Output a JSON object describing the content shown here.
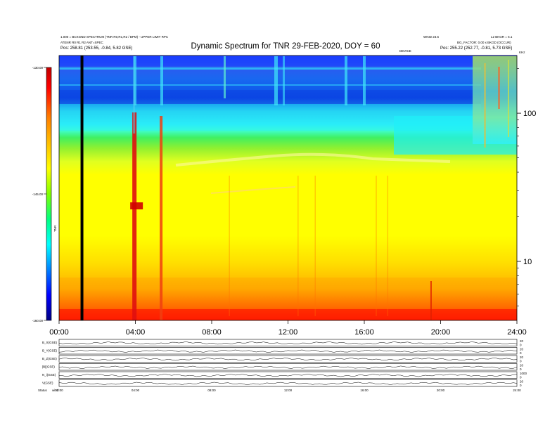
{
  "header": {
    "title": "Dynamic Spectrum for TNR 29-FEB-2020, DOY = 60",
    "left_line1": "1.000 = BCKGND SPECTRUM (TNR R0,R1,R2 / BPM) - UPPER LIMIT RPC",
    "left_line2": "ATENR R0 R1 R2 ANT=SPEC",
    "left_line3": "Pos:  258.81 (253.55, -0.84, 5.82 GSE)",
    "right_line1a": "WIND 23.6",
    "right_line1b": "L2 BKGR = 6.1",
    "right_line2": "BG_FACTOR: 0.00 x BKGD (OCCUR)",
    "right_line3": "Pos:  255.22 (252.77, -0.81, 5.73 GSE)",
    "mid_label": "DEVICE",
    "top_right_corner": "KHz"
  },
  "chart_data": {
    "type": "heatmap",
    "title": "Dynamic Spectrum for TNR 29-FEB-2020, DOY = 60",
    "x_axis": {
      "ticks": [
        "00:00",
        "04:00",
        "08:00",
        "12:00",
        "16:00",
        "20:00",
        "24:00"
      ],
      "range_hours": [
        0,
        24
      ]
    },
    "y_axis_right": {
      "scale": "log",
      "unit": "kHz",
      "ticks": [
        10,
        100
      ],
      "range": [
        4,
        245
      ]
    },
    "colorbar": {
      "label": "TNR",
      "ticks": [
        "-130.00",
        "-145.00",
        "-160.00"
      ],
      "range": [
        -160,
        -130
      ],
      "colors": [
        "#000080",
        "#0000ff",
        "#0080ff",
        "#00ffff",
        "#00ff80",
        "#80ff00",
        "#ffff00",
        "#ffc000",
        "#ff8000",
        "#ff0000",
        "#c00000"
      ]
    },
    "frequency_bands": [
      {
        "from_khz": 180,
        "to_khz": 245,
        "level": "dark blue"
      },
      {
        "from_khz": 115,
        "to_khz": 180,
        "level": "blue"
      },
      {
        "from_khz": 70,
        "to_khz": 115,
        "level": "cyan"
      },
      {
        "from_khz": 45,
        "to_khz": 70,
        "level": "green"
      },
      {
        "from_khz": 12,
        "to_khz": 45,
        "level": "yellow"
      },
      {
        "from_khz": 5,
        "to_khz": 12,
        "level": "orange"
      },
      {
        "from_khz": 4,
        "to_khz": 5,
        "level": "red"
      }
    ],
    "events_hours": [
      1.2,
      3.95,
      5.35,
      19.5
    ],
    "data_gap_hour": 1.2
  },
  "panels": {
    "labels": [
      "B_X(GSE)",
      "B_Y(GSE)",
      "B_Z(GSE)",
      "|B|(GSE)",
      "N_i(GSE)",
      "V(GSE)"
    ],
    "right_ticks": [
      [
        "20",
        "0"
      ],
      [
        "20",
        "0"
      ],
      [
        "20",
        "0"
      ],
      [
        "20",
        "0"
      ],
      [
        "1000",
        "0"
      ],
      [
        "20",
        "0"
      ]
    ],
    "x_ticks": [
      "00:00",
      "04:00",
      "08:00",
      "12:00",
      "16:00",
      "20:00",
      "24:00"
    ],
    "footer_left": "Status",
    "footer_right": "wind"
  }
}
